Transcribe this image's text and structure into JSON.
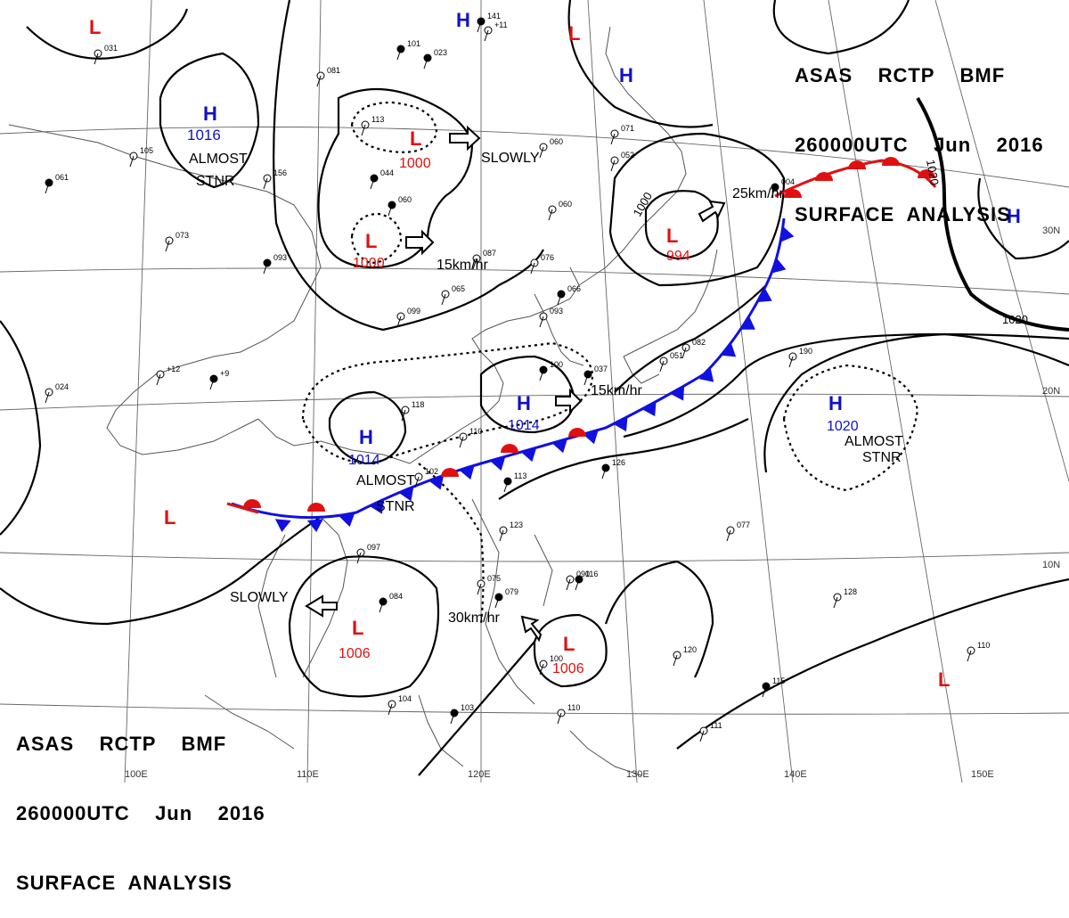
{
  "header": {
    "line1": "ASAS    RCTP    BMF",
    "line2": "260000UTC    Jun    2016",
    "line3": "SURFACE  ANALYSIS"
  },
  "colors": {
    "high": "#1010c8",
    "low": "#e01010",
    "cold_front": "#1010e0",
    "warm_front": "#e01010",
    "isobar": "#000000",
    "grid": "#555555"
  },
  "grid_labels": {
    "lon": [
      "100E",
      "110E",
      "120E",
      "130E",
      "140E",
      "150E"
    ],
    "lat": [
      "30N",
      "20N",
      "10N"
    ]
  },
  "systems": [
    {
      "type": "L",
      "pressure": ""
    },
    {
      "type": "H",
      "pressure": ""
    },
    {
      "type": "L",
      "pressure": ""
    },
    {
      "type": "H",
      "pressure": "1016",
      "note1": "ALMOST",
      "note2": "STNR"
    },
    {
      "type": "H",
      "pressure": ""
    },
    {
      "type": "L",
      "pressure": "1000"
    },
    {
      "type": "L",
      "pressure": "1000"
    },
    {
      "type": "L",
      "pressure": "994"
    },
    {
      "type": "H",
      "pressure": "1014"
    },
    {
      "type": "H",
      "pressure": "1014",
      "note1": "ALMOST",
      "note2": "STNR"
    },
    {
      "type": "H",
      "pressure": "1020",
      "note1": "ALMOST",
      "note2": "STNR"
    },
    {
      "type": "H",
      "pressure": ""
    },
    {
      "type": "L",
      "pressure": ""
    },
    {
      "type": "L",
      "pressure": "1006"
    },
    {
      "type": "L",
      "pressure": "1006"
    },
    {
      "type": "L",
      "pressure": ""
    }
  ],
  "motions": {
    "m1": "SLOWLY",
    "m2": "15km/hr",
    "m3": "25km/hr",
    "m4": "15km/hr",
    "m5": "SLOWLY",
    "m6": "30km/hr"
  },
  "isobar_labels": {
    "i1": "1020",
    "i2": "1020",
    "i3": "1000"
  },
  "stations": [
    "141",
    "+11",
    "031",
    "101",
    "081",
    "113",
    "044",
    "156",
    "105",
    "061",
    "060",
    "060",
    "060",
    "087",
    "076",
    "093",
    "073",
    "065",
    "066",
    "099",
    "093",
    "100",
    "118",
    "110",
    "113",
    "102",
    "097",
    "084",
    "075",
    "090",
    "079",
    "100",
    "104",
    "103",
    "110",
    "111",
    "126",
    "123",
    "077",
    "116",
    "128",
    "120",
    "115",
    "110",
    "190",
    "023",
    "071",
    "052",
    "004",
    "082",
    "+12",
    "+9",
    "024",
    "051",
    "037"
  ]
}
